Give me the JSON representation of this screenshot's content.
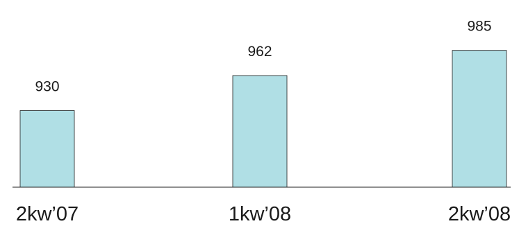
{
  "chart_data": {
    "type": "bar",
    "categories": [
      "2kw’07",
      "1kw’08",
      "2kw’08"
    ],
    "values": [
      930,
      962,
      985
    ],
    "data_labels": [
      "930",
      "962",
      "985"
    ],
    "title": "",
    "xlabel": "",
    "ylabel": "",
    "ylim": [
      860,
      1000
    ],
    "grid": false,
    "legend": "none",
    "bar_color": "#b0dfe5",
    "edge_color": "#1f1f1f"
  }
}
